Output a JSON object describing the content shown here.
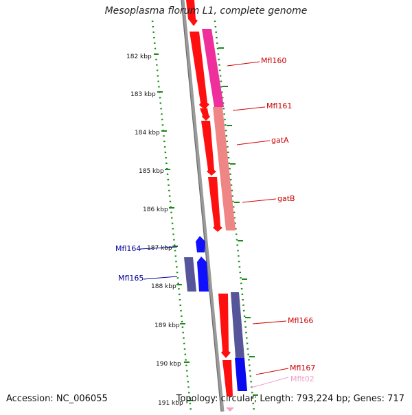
{
  "title": "Mesoplasma florum L1, complete genome",
  "footer": {
    "accession": "Accession: NC_006055",
    "summary": "Topology: circular; Length: 793,224 bp; Genes: 717"
  },
  "colors": {
    "forward_cds": "#ff0000",
    "reverse_cds": "#0000ff",
    "tick": "#008000",
    "backbone": "#808080",
    "pink_band": "#ee2f9c",
    "salmon_band": "#f08080",
    "purple_band": "#555599"
  },
  "kbp_ticks": [
    "182 kbp",
    "183 kbp",
    "184 kbp",
    "185 kbp",
    "186 kbp",
    "187 kbp",
    "188 kbp",
    "189 kbp",
    "190 kbp",
    "191 kbp"
  ],
  "features": [
    {
      "label": "Mfl160",
      "strand": "forward",
      "color": "#cc0000"
    },
    {
      "label": "Mfl161",
      "strand": "forward",
      "color": "#cc0000"
    },
    {
      "label": "gatA",
      "strand": "forward",
      "color": "#cc0000"
    },
    {
      "label": "gatB",
      "strand": "forward",
      "color": "#cc0000"
    },
    {
      "label": "Mfl164",
      "strand": "reverse",
      "color": "#000099"
    },
    {
      "label": "Mfl165",
      "strand": "reverse",
      "color": "#000099"
    },
    {
      "label": "Mfl166",
      "strand": "forward",
      "color": "#cc0000"
    },
    {
      "label": "Mfl167",
      "strand": "forward",
      "color": "#cc0000"
    },
    {
      "label": "Mflt02",
      "strand": "forward",
      "color": "#f0a0c8"
    }
  ]
}
